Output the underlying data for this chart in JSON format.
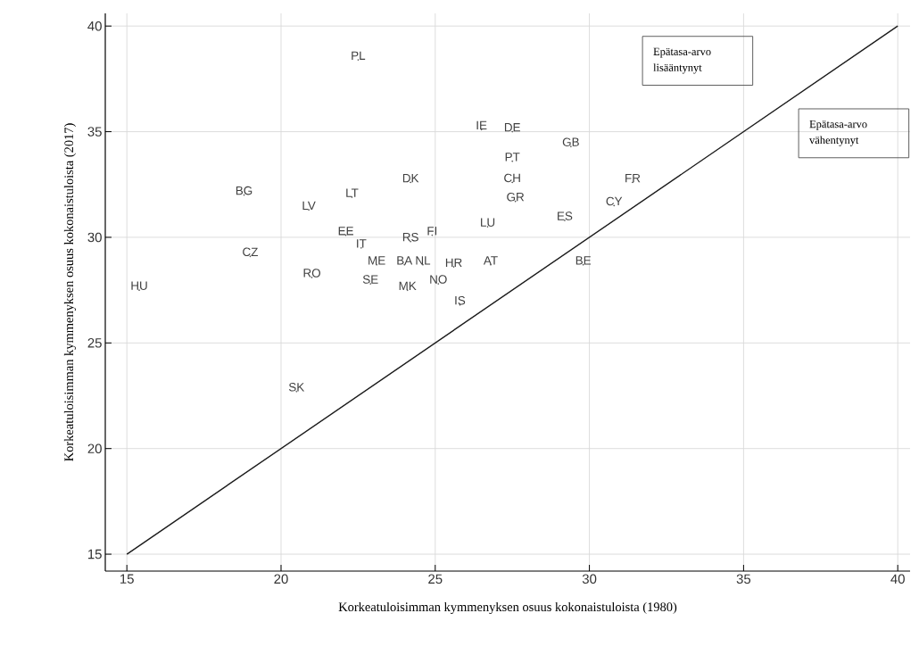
{
  "chart_data": {
    "type": "scatter",
    "xlabel": "Korkeatuloisimman kymmenyksen osuus kokonaistuloista (1980)",
    "ylabel": "Korkeatuloisimman kymmenyksen osuus kokonaistuloista (2017)",
    "xlim": [
      14.3,
      40.4
    ],
    "ylim": [
      14.2,
      40.6
    ],
    "xticks": [
      15,
      20,
      25,
      30,
      35,
      40
    ],
    "yticks": [
      15,
      20,
      25,
      30,
      35,
      40
    ],
    "grid": true,
    "series": [
      {
        "color": "#404040",
        "marker": "circle",
        "x": [
          22.5,
          26.5,
          27.5,
          29.4,
          27.5,
          31.4,
          24.2,
          27.5,
          18.8,
          22.3,
          27.6,
          30.8,
          20.9,
          29.2,
          26.7,
          22.1,
          24.9,
          24.2,
          22.6,
          19.0,
          23.1,
          24.0,
          24.6,
          25.6,
          26.8,
          29.8,
          21.0,
          22.9,
          25.1,
          24.1,
          15.4,
          25.8,
          20.5
        ],
        "values": [
          38.4,
          35.1,
          35.0,
          34.3,
          33.6,
          32.6,
          32.6,
          32.6,
          32.0,
          31.9,
          31.7,
          31.5,
          31.3,
          30.8,
          30.5,
          30.1,
          30.1,
          29.8,
          29.5,
          29.1,
          28.7,
          28.7,
          28.7,
          28.6,
          28.7,
          28.7,
          28.1,
          27.8,
          27.8,
          27.5,
          27.5,
          26.8,
          22.7
        ],
        "value_labels": [
          "PL",
          "IE",
          "DE",
          "GB",
          "PT",
          "FR",
          "DK",
          "CH",
          "BG",
          "LT",
          "GR",
          "CY",
          "LV",
          "ES",
          "LU",
          "EE",
          "FI",
          "RS",
          "IT",
          "CZ",
          "ME",
          "BA",
          "NL",
          "HR",
          "AT",
          "BE",
          "RO",
          "SE",
          "NO",
          "MK",
          "HU",
          "IS",
          "SK"
        ]
      },
      {
        "type": "line",
        "color": "#1a1a1a",
        "x": [
          15,
          40
        ],
        "values": [
          15,
          40
        ]
      }
    ],
    "annotations": [
      "Epätasa-arvo\nlisääntynyt",
      "Epätasa-arvo\nvähentynyt"
    ]
  }
}
